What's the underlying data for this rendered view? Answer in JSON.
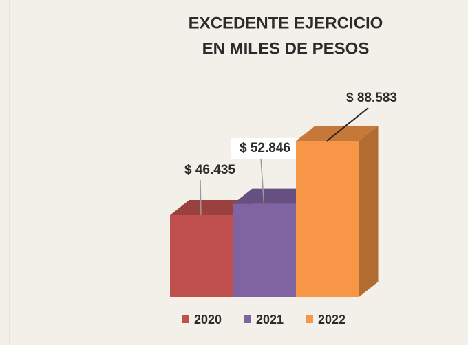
{
  "chart_data": {
    "type": "bar3d",
    "title": "EXCEDENTE EJERCICIO",
    "subtitle": "EN MILES DE PESOS",
    "series": [
      {
        "name": "2020",
        "color": "#c0504d",
        "values": [
          46435
        ],
        "value_labels": [
          "$ 46.435"
        ]
      },
      {
        "name": "2021",
        "color": "#8064a2",
        "values": [
          52846
        ],
        "value_labels": [
          "$ 52.846"
        ]
      },
      {
        "name": "2022",
        "color": "#f79646",
        "values": [
          88583
        ],
        "value_labels": [
          "$ 88.583"
        ]
      }
    ]
  }
}
